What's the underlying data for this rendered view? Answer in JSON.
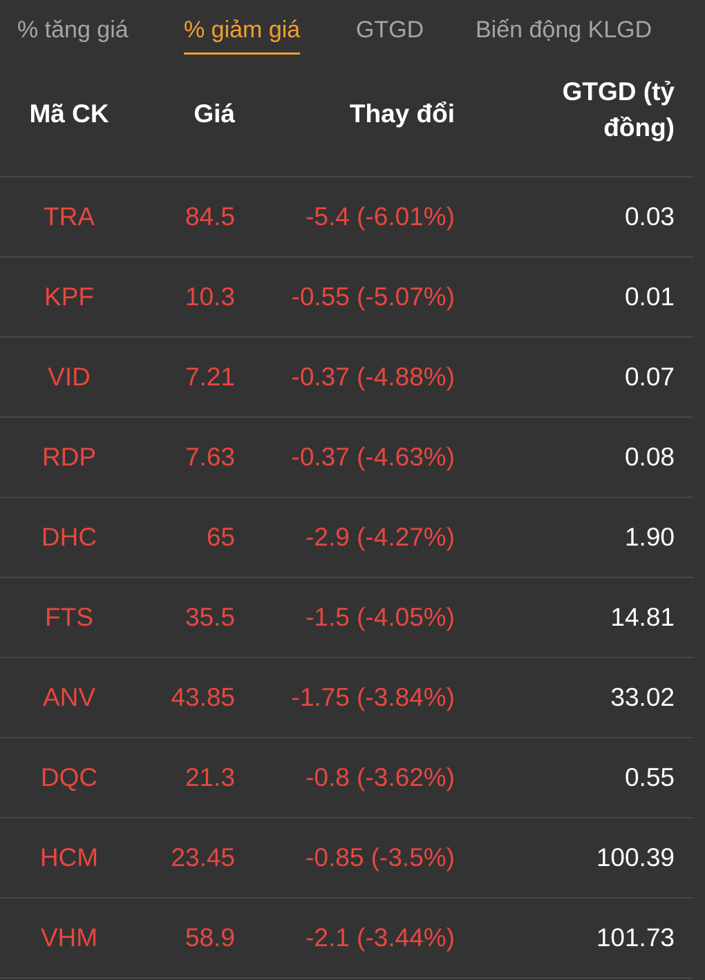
{
  "tabs": [
    {
      "label": "% tăng giá",
      "active": false
    },
    {
      "label": "% giảm giá",
      "active": true
    },
    {
      "label": "GTGD",
      "active": false
    },
    {
      "label": "Biến động KLGD",
      "active": false
    }
  ],
  "colors": {
    "background": "#333333",
    "active_tab": "#f0a035",
    "inactive_tab": "#a5a5a5",
    "decrease": "#e8473f",
    "divider": "#474747"
  },
  "table": {
    "headers": {
      "code": "Mã CK",
      "price": "Giá",
      "change": "Thay đổi",
      "value_line1": "GTGD (tỷ",
      "value_line2": "đồng)"
    },
    "rows": [
      {
        "code": "TRA",
        "price": "84.5",
        "change": "-5.4 (-6.01%)",
        "value": "0.03"
      },
      {
        "code": "KPF",
        "price": "10.3",
        "change": "-0.55 (-5.07%)",
        "value": "0.01"
      },
      {
        "code": "VID",
        "price": "7.21",
        "change": "-0.37 (-4.88%)",
        "value": "0.07"
      },
      {
        "code": "RDP",
        "price": "7.63",
        "change": "-0.37 (-4.63%)",
        "value": "0.08"
      },
      {
        "code": "DHC",
        "price": "65",
        "change": "-2.9 (-4.27%)",
        "value": "1.90"
      },
      {
        "code": "FTS",
        "price": "35.5",
        "change": "-1.5 (-4.05%)",
        "value": "14.81"
      },
      {
        "code": "ANV",
        "price": "43.85",
        "change": "-1.75 (-3.84%)",
        "value": "33.02"
      },
      {
        "code": "DQC",
        "price": "21.3",
        "change": "-0.8 (-3.62%)",
        "value": "0.55"
      },
      {
        "code": "HCM",
        "price": "23.45",
        "change": "-0.85 (-3.5%)",
        "value": "100.39"
      },
      {
        "code": "VHM",
        "price": "58.9",
        "change": "-2.1 (-3.44%)",
        "value": "101.73"
      }
    ]
  }
}
